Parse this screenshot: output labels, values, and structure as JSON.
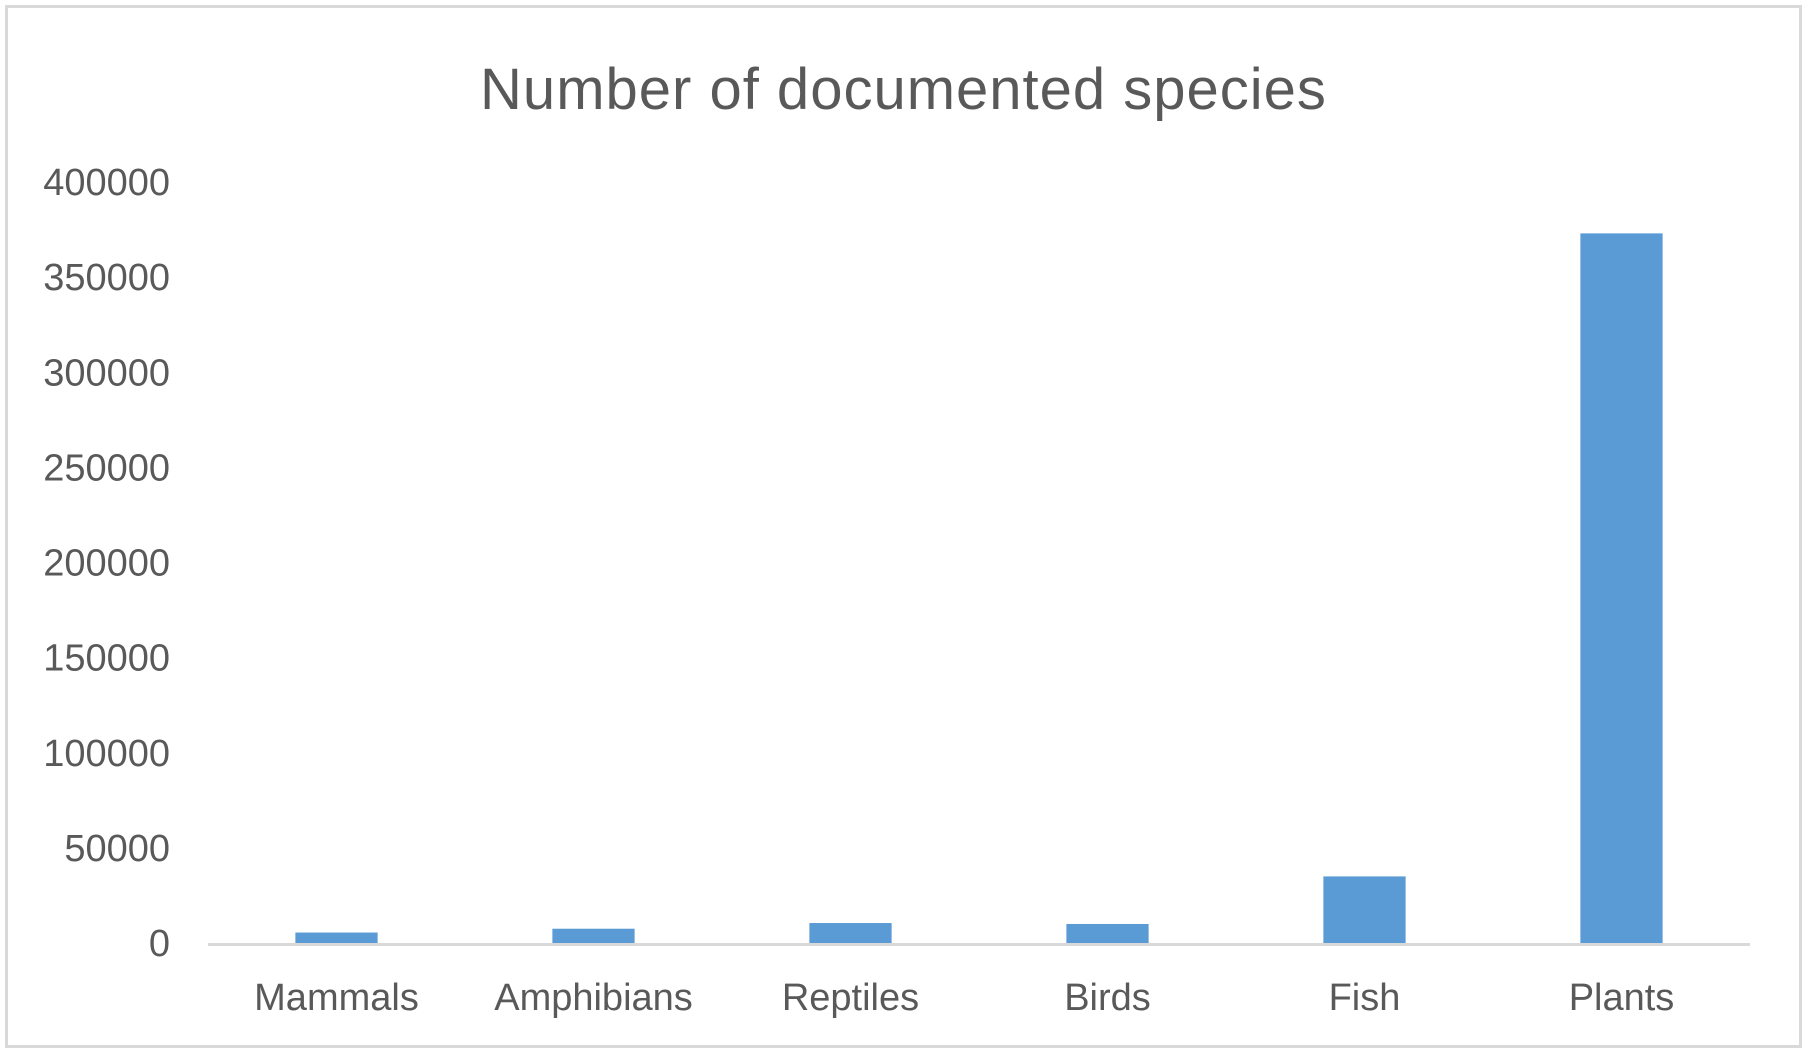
{
  "chart_data": {
    "type": "bar",
    "title": "Number of documented species",
    "xlabel": "",
    "ylabel": "",
    "categories": [
      "Mammals",
      "Amphibians",
      "Reptiles",
      "Birds",
      "Fish",
      "Plants"
    ],
    "values": [
      5500,
      7500,
      10500,
      10000,
      35000,
      373000
    ],
    "ylim": [
      0,
      400000
    ],
    "yticks": [
      0,
      50000,
      100000,
      150000,
      200000,
      250000,
      300000,
      350000,
      400000
    ],
    "grid": false,
    "legend": "none",
    "bar_color": "#5b9bd5"
  }
}
